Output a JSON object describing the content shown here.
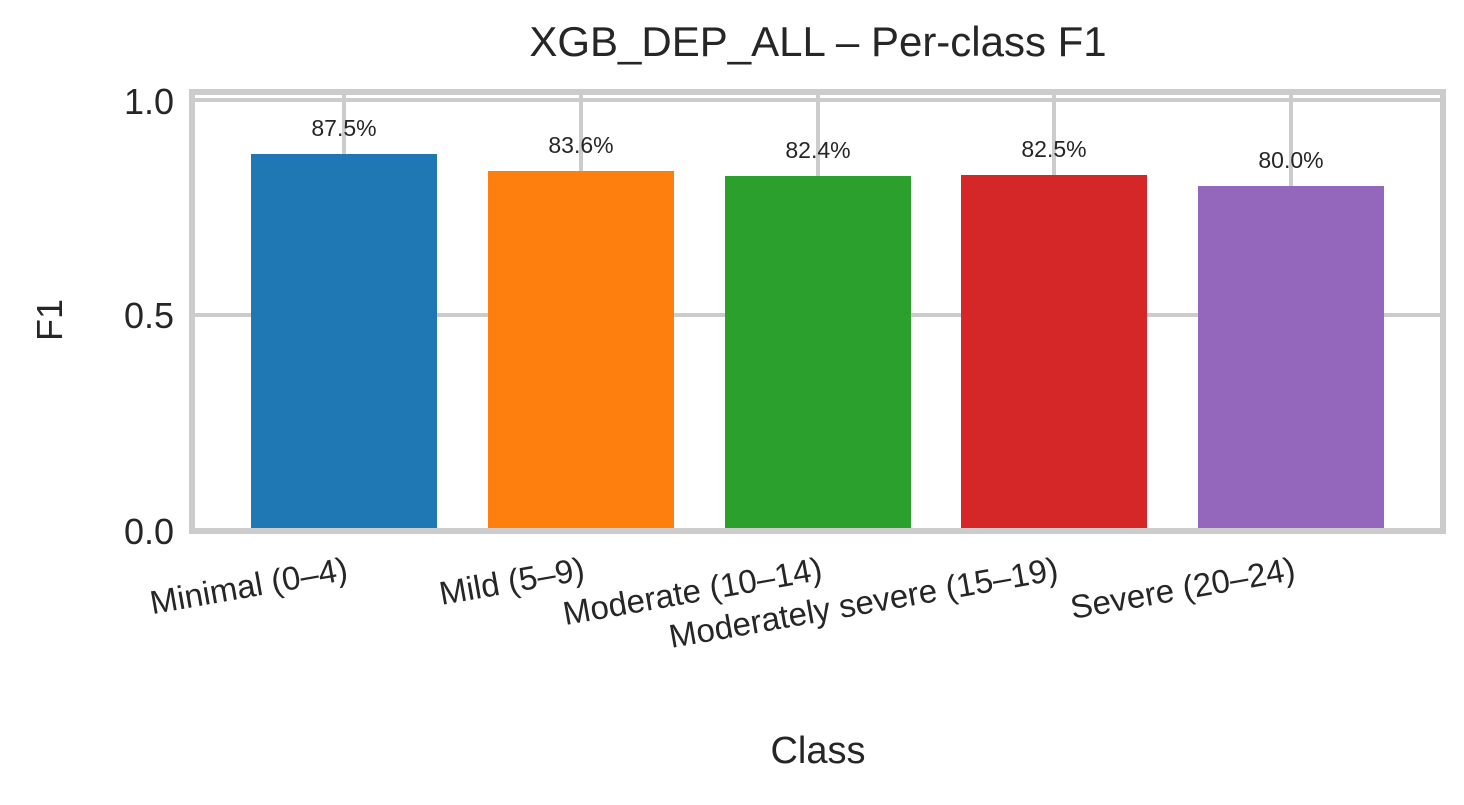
{
  "chart_data": {
    "type": "bar",
    "title": "XGB_DEP_ALL – Per-class F1",
    "xlabel": "Class",
    "ylabel": "F1",
    "ylim": [
      0,
      1.02
    ],
    "yticks": [
      "0.0",
      "0.5",
      "1.0"
    ],
    "grid": true,
    "legend": null,
    "categories": [
      "Minimal (0–4)",
      "Mild (5–9)",
      "Moderate (10–14)",
      "Moderately severe (15–19)",
      "Severe (20–24)"
    ],
    "values": [
      0.875,
      0.836,
      0.824,
      0.825,
      0.8
    ],
    "value_labels": [
      "87.5%",
      "83.6%",
      "82.4%",
      "82.5%",
      "80.0%"
    ],
    "colors": [
      "#1f77b4",
      "#ff7f0e",
      "#2ca02c",
      "#d62728",
      "#9467bd"
    ]
  },
  "colors": {
    "grid": "#cccccc",
    "text": "#262626",
    "background": "#ffffff"
  }
}
